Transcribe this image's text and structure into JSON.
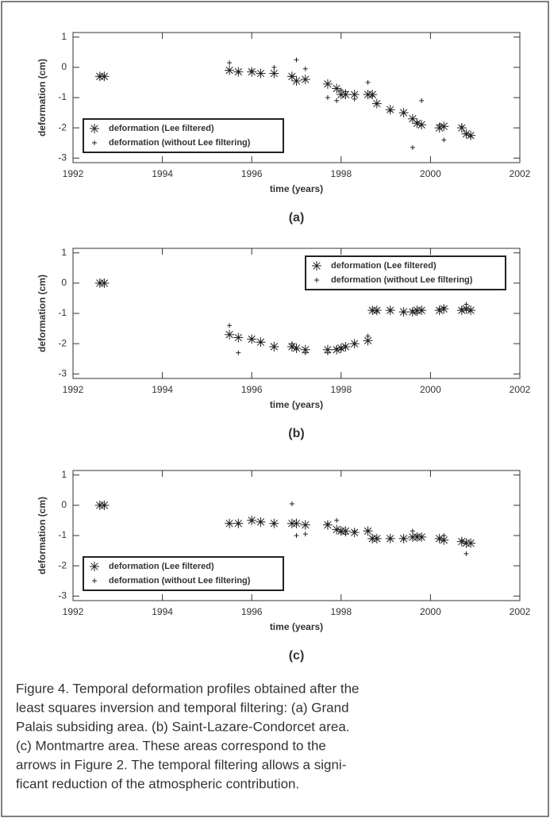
{
  "chart_data": [
    {
      "type": "scatter",
      "panel": "(a)",
      "xlabel": "time (years)",
      "ylabel": "deformation (cm)",
      "xlim": [
        1992,
        2002
      ],
      "xticks": [
        1992,
        1994,
        1996,
        1998,
        2000,
        2002
      ],
      "ylim": [
        -3.15,
        1.15
      ],
      "yticks": [
        1,
        0,
        -1,
        -2,
        -3
      ],
      "legend": "lower left",
      "x": [
        1992.6,
        1992.7,
        1995.5,
        1995.7,
        1996.0,
        1996.2,
        1996.5,
        1996.9,
        1997.0,
        1997.2,
        1997.7,
        1997.9,
        1998.0,
        1998.1,
        1998.3,
        1998.6,
        1998.7,
        1998.8,
        1999.1,
        1999.4,
        1999.6,
        1999.7,
        1999.8,
        2000.2,
        2000.3,
        2000.7,
        2000.8,
        2000.9
      ],
      "series": [
        {
          "name": "deformation (Lee filtered)",
          "color": "#222222",
          "marker": "asterisk",
          "values": [
            -0.3,
            -0.3,
            -0.1,
            -0.15,
            -0.15,
            -0.2,
            -0.2,
            -0.3,
            -0.45,
            -0.4,
            -0.55,
            -0.7,
            -0.9,
            -0.9,
            -0.9,
            -0.9,
            -0.9,
            -1.2,
            -1.4,
            -1.5,
            -1.7,
            -1.85,
            -1.9,
            -2.0,
            -1.95,
            -2.0,
            -2.2,
            -2.25
          ]
        },
        {
          "name": "deformation (without Lee filtering)",
          "color": "#222222",
          "marker": "plus",
          "values": [
            -0.3,
            -0.3,
            0.15,
            -0.15,
            -0.1,
            -0.2,
            0.0,
            -0.3,
            0.25,
            -0.05,
            -1.0,
            -1.1,
            -0.75,
            -0.8,
            -1.05,
            -0.5,
            -0.95,
            -1.2,
            -1.45,
            -1.5,
            -2.65,
            -1.8,
            -1.1,
            -1.9,
            -2.4,
            -1.95,
            -2.2,
            -2.3
          ]
        }
      ]
    },
    {
      "type": "scatter",
      "panel": "(b)",
      "xlabel": "time (years)",
      "ylabel": "deformation (cm)",
      "xlim": [
        1992,
        2002
      ],
      "xticks": [
        1992,
        1994,
        1996,
        1998,
        2000,
        2002
      ],
      "ylim": [
        -3.15,
        1.15
      ],
      "yticks": [
        1,
        0,
        -1,
        -2,
        -3
      ],
      "legend": "upper right",
      "x": [
        1992.6,
        1992.7,
        1995.5,
        1995.7,
        1996.0,
        1996.2,
        1996.5,
        1996.9,
        1997.0,
        1997.2,
        1997.7,
        1997.9,
        1998.0,
        1998.1,
        1998.3,
        1998.6,
        1998.7,
        1998.8,
        1999.1,
        1999.4,
        1999.6,
        1999.7,
        1999.8,
        2000.2,
        2000.3,
        2000.7,
        2000.8,
        2000.9
      ],
      "series": [
        {
          "name": "deformation (Lee filtered)",
          "color": "#222222",
          "marker": "asterisk",
          "values": [
            0,
            0,
            -1.7,
            -1.8,
            -1.85,
            -1.95,
            -2.1,
            -2.1,
            -2.15,
            -2.2,
            -2.2,
            -2.2,
            -2.15,
            -2.1,
            -2.0,
            -1.9,
            -0.9,
            -0.9,
            -0.9,
            -0.95,
            -0.95,
            -0.9,
            -0.9,
            -0.9,
            -0.85,
            -0.9,
            -0.85,
            -0.9
          ]
        },
        {
          "name": "deformation (without Lee filtering)",
          "color": "#222222",
          "marker": "plus",
          "values": [
            0,
            0,
            -1.4,
            -2.3,
            -1.85,
            -1.95,
            -2.1,
            -2.0,
            -2.2,
            -2.3,
            -2.3,
            -2.15,
            -2.2,
            -2.1,
            -2.0,
            -1.75,
            -0.9,
            -0.95,
            -0.9,
            -0.95,
            -0.9,
            -1.0,
            -0.9,
            -0.85,
            -0.8,
            -0.85,
            -0.7,
            -0.9
          ]
        }
      ]
    },
    {
      "type": "scatter",
      "panel": "(c)",
      "xlabel": "time (years)",
      "ylabel": "deformation (cm)",
      "xlim": [
        1992,
        2002
      ],
      "xticks": [
        1992,
        1994,
        1996,
        1998,
        2000,
        2002
      ],
      "ylim": [
        -3.15,
        1.15
      ],
      "yticks": [
        1,
        0,
        -1,
        -2,
        -3
      ],
      "legend": "lower left",
      "x": [
        1992.6,
        1992.7,
        1995.5,
        1995.7,
        1996.0,
        1996.2,
        1996.5,
        1996.9,
        1997.0,
        1997.2,
        1997.7,
        1997.9,
        1998.0,
        1998.1,
        1998.3,
        1998.6,
        1998.7,
        1998.8,
        1999.1,
        1999.4,
        1999.6,
        1999.7,
        1999.8,
        2000.2,
        2000.3,
        2000.7,
        2000.8,
        2000.9
      ],
      "series": [
        {
          "name": "deformation (Lee filtered)",
          "color": "#222222",
          "marker": "asterisk",
          "values": [
            0,
            0,
            -0.6,
            -0.6,
            -0.5,
            -0.55,
            -0.6,
            -0.6,
            -0.6,
            -0.65,
            -0.65,
            -0.8,
            -0.85,
            -0.85,
            -0.9,
            -0.85,
            -1.1,
            -1.1,
            -1.1,
            -1.1,
            -1.05,
            -1.05,
            -1.05,
            -1.1,
            -1.15,
            -1.2,
            -1.25,
            -1.25
          ]
        },
        {
          "name": "deformation (without Lee filtering)",
          "color": "#222222",
          "marker": "plus",
          "values": [
            0,
            0,
            -0.6,
            -0.6,
            -0.5,
            -0.55,
            -0.6,
            0.05,
            -1.0,
            -0.95,
            -0.6,
            -0.5,
            -0.9,
            -0.95,
            -0.85,
            -0.85,
            -1.1,
            -1.1,
            -1.1,
            -1.1,
            -0.85,
            -1.0,
            -1.05,
            -1.1,
            -1.0,
            -1.15,
            -1.6,
            -1.25
          ]
        }
      ]
    }
  ],
  "caption": [
    "Figure 4. Temporal deformation profiles obtained after the",
    "least squares inversion and temporal filtering: (a) Grand",
    "Palais subsiding area. (b) Saint-Lazare-Condorcet area.",
    "(c) Montmartre area. These areas correspond to the",
    "arrows in Figure 2. The temporal filtering allows a signi-",
    "ficant reduction of the atmospheric contribution."
  ]
}
